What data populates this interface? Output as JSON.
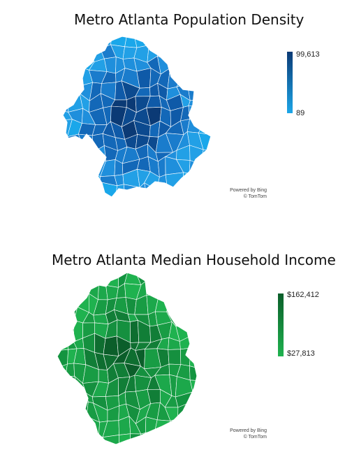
{
  "maps": [
    {
      "title": "Metro Atlanta Population Density",
      "legend": {
        "max_label": "99,613",
        "min_label": "89",
        "max_color": "#0b3a75",
        "min_color": "#1ca6e8"
      },
      "credit": {
        "line1": "Powered by Bing",
        "line2": "© TomTom"
      },
      "palette": [
        "#0b3a75",
        "#0c4a8f",
        "#0f5aa8",
        "#1368b8",
        "#1a7ccc",
        "#1f8fdc",
        "#22a0e6",
        "#1aa7ea"
      ]
    },
    {
      "title": "Metro Atlanta Median Household Income",
      "legend": {
        "max_label": "$162,412",
        "min_label": "$27,813",
        "max_color": "#0b5e2a",
        "min_color": "#1fb24f"
      },
      "credit": {
        "line1": "Powered by Bing",
        "line2": "© TomTom"
      },
      "palette": [
        "#0b5e2a",
        "#0e6e30",
        "#117e37",
        "#15903f",
        "#189c44",
        "#1ca84b",
        "#1fb24f",
        "#139440"
      ]
    }
  ]
}
